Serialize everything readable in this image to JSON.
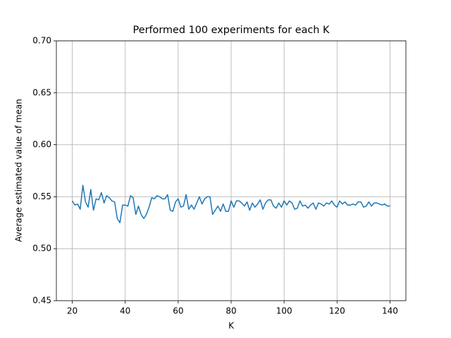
{
  "chart_data": {
    "type": "line",
    "title": "Performed 100 experiments for each K",
    "x_label": "K",
    "y_label": "Average estimated value of mean",
    "x": [
      20,
      21,
      22,
      23,
      24,
      25,
      26,
      27,
      28,
      29,
      30,
      31,
      32,
      33,
      34,
      35,
      36,
      37,
      38,
      39,
      40,
      41,
      42,
      43,
      44,
      45,
      46,
      47,
      48,
      49,
      50,
      51,
      52,
      53,
      54,
      55,
      56,
      57,
      58,
      59,
      60,
      61,
      62,
      63,
      64,
      65,
      66,
      67,
      68,
      69,
      70,
      71,
      72,
      73,
      74,
      75,
      76,
      77,
      78,
      79,
      80,
      81,
      82,
      83,
      84,
      85,
      86,
      87,
      88,
      89,
      90,
      91,
      92,
      93,
      94,
      95,
      96,
      97,
      98,
      99,
      100,
      101,
      102,
      103,
      104,
      105,
      106,
      107,
      108,
      109,
      110,
      111,
      112,
      113,
      114,
      115,
      116,
      117,
      118,
      119,
      120,
      121,
      122,
      123,
      124,
      125,
      126,
      127,
      128,
      129,
      130,
      131,
      132,
      133,
      134,
      135,
      136,
      137,
      138,
      139,
      140
    ],
    "series": [
      {
        "name": "mean",
        "color": "#1f77b4",
        "values": [
          0.546,
          0.542,
          0.543,
          0.538,
          0.561,
          0.545,
          0.54,
          0.557,
          0.537,
          0.548,
          0.547,
          0.554,
          0.544,
          0.551,
          0.549,
          0.546,
          0.545,
          0.529,
          0.525,
          0.542,
          0.542,
          0.541,
          0.551,
          0.549,
          0.533,
          0.541,
          0.533,
          0.529,
          0.533,
          0.54,
          0.549,
          0.548,
          0.551,
          0.55,
          0.548,
          0.548,
          0.552,
          0.537,
          0.536,
          0.545,
          0.548,
          0.54,
          0.541,
          0.552,
          0.538,
          0.542,
          0.538,
          0.544,
          0.55,
          0.543,
          0.548,
          0.55,
          0.55,
          0.533,
          0.537,
          0.541,
          0.536,
          0.543,
          0.536,
          0.536,
          0.546,
          0.54,
          0.546,
          0.546,
          0.544,
          0.541,
          0.545,
          0.537,
          0.544,
          0.54,
          0.543,
          0.547,
          0.538,
          0.544,
          0.547,
          0.547,
          0.541,
          0.539,
          0.544,
          0.54,
          0.546,
          0.542,
          0.546,
          0.544,
          0.538,
          0.539,
          0.546,
          0.541,
          0.542,
          0.539,
          0.542,
          0.544,
          0.538,
          0.544,
          0.543,
          0.541,
          0.544,
          0.543,
          0.546,
          0.542,
          0.54,
          0.546,
          0.543,
          0.545,
          0.542,
          0.542,
          0.543,
          0.542,
          0.545,
          0.545,
          0.54,
          0.541,
          0.545,
          0.541,
          0.544,
          0.544,
          0.543,
          0.542,
          0.543,
          0.541,
          0.541
        ]
      }
    ],
    "xlim": [
      14,
      146
    ],
    "xticks": [
      20,
      40,
      60,
      80,
      100,
      120,
      140
    ],
    "ylim": [
      0.45,
      0.7
    ],
    "yticks": [
      0.45,
      {
        "value": 0.5,
        "label": "0.50"
      },
      0.55,
      {
        "value": 0.6,
        "label": "0.60"
      },
      0.65,
      {
        "value": 0.7,
        "label": "0.70"
      }
    ],
    "grid": true
  }
}
